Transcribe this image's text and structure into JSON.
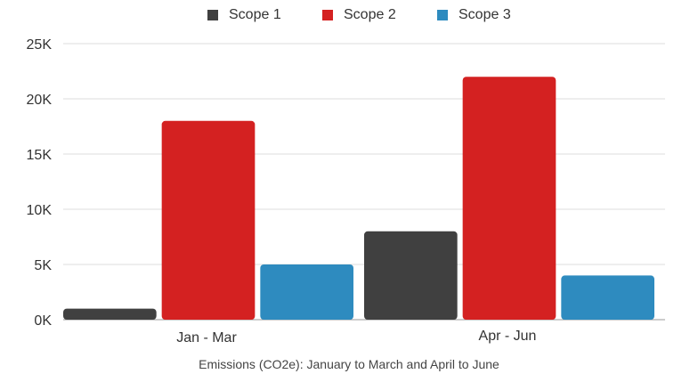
{
  "chart_data": {
    "type": "bar",
    "categories": [
      "Jan - Mar",
      "Apr - Jun"
    ],
    "series": [
      {
        "name": "Scope 1",
        "values": [
          1000,
          8000
        ],
        "color": "#404040"
      },
      {
        "name": "Scope 2",
        "values": [
          18000,
          22000
        ],
        "color": "#d42121"
      },
      {
        "name": "Scope 3",
        "values": [
          5000,
          4000
        ],
        "color": "#2e8bbf"
      }
    ],
    "title": "",
    "xlabel": "Emissions (CO2e): January to March and April to June",
    "ylabel": "",
    "ylim": [
      0,
      25000
    ],
    "yticks": [
      0,
      5000,
      10000,
      15000,
      20000,
      25000
    ],
    "ytick_labels": [
      "0K",
      "5K",
      "10K",
      "15K",
      "20K",
      "25K"
    ],
    "grid": true,
    "legend_position": "top-center"
  }
}
